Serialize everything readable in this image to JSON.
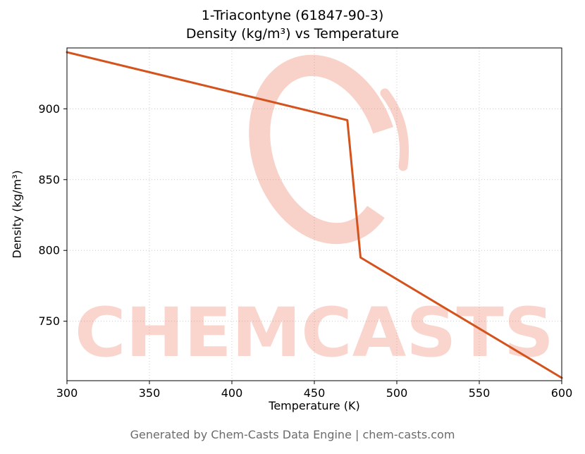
{
  "chart_data": {
    "type": "line",
    "title_line1": "1-Triacontyne (61847-90-3)",
    "title_line2": "Density (kg/m³) vs Temperature",
    "xlabel": "Temperature (K)",
    "ylabel": "Density (kg/m³)",
    "xlim": [
      300,
      600
    ],
    "ylim": [
      708,
      943
    ],
    "x_ticks": [
      300,
      350,
      400,
      450,
      500,
      550,
      600
    ],
    "y_ticks": [
      750,
      800,
      850,
      900
    ],
    "grid": true,
    "legend": "none",
    "series": [
      {
        "name": "Density",
        "color": "#d4531d",
        "points": [
          [
            300,
            940
          ],
          [
            470,
            892
          ],
          [
            478,
            795
          ],
          [
            600,
            710
          ]
        ]
      }
    ],
    "watermark": {
      "text": "CHEMCASTS",
      "color": "#e8694a"
    }
  },
  "footer": {
    "text": "Generated by Chem-Casts Data Engine | chem-casts.com"
  }
}
